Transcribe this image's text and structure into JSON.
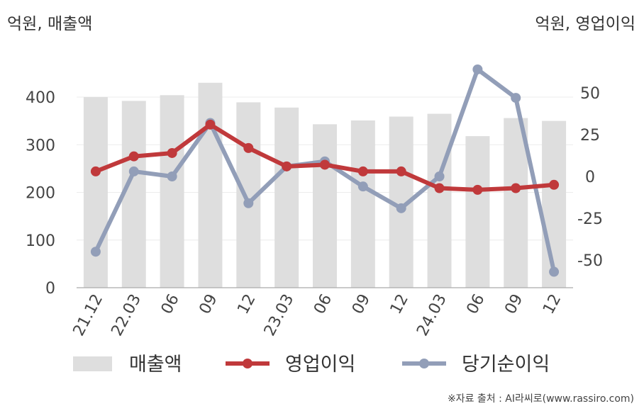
{
  "header": {
    "left_unit": "억원, 매출액",
    "right_unit": "억원, 영업이익"
  },
  "source": "※자료 출처 : AI라씨로(www.rassiro.com)",
  "chart_data": {
    "type": "bar",
    "categories": [
      "21.12",
      "22.03",
      "06",
      "09",
      "12",
      "23.03",
      "06",
      "09",
      "12",
      "24.03",
      "06",
      "09",
      "12"
    ],
    "series": [
      {
        "name": "매출액",
        "type": "bar",
        "axis": "left",
        "color": "#dedede",
        "values": [
          400,
          392,
          404,
          430,
          389,
          378,
          343,
          351,
          359,
          365,
          318,
          356,
          350
        ]
      },
      {
        "name": "영업이익",
        "type": "line",
        "axis": "right",
        "color": "#c0393b",
        "values": [
          3,
          12,
          14,
          31,
          17,
          6,
          7,
          3,
          3,
          -7,
          -8,
          -7,
          -5
        ]
      },
      {
        "name": "당기순이익",
        "type": "line",
        "axis": "right",
        "color": "#929eb8",
        "values": [
          -45,
          3,
          0,
          32,
          -16,
          6,
          9,
          -6,
          -19,
          0,
          64,
          47,
          -57
        ]
      }
    ],
    "left_axis": {
      "ticks": [
        0,
        100,
        200,
        300,
        400
      ],
      "range": [
        0,
        480
      ]
    },
    "right_axis": {
      "ticks": [
        -50,
        -25,
        0,
        25,
        50
      ],
      "range": [
        -66.25,
        76.5
      ]
    },
    "grid": true,
    "legend_position": "bottom"
  }
}
